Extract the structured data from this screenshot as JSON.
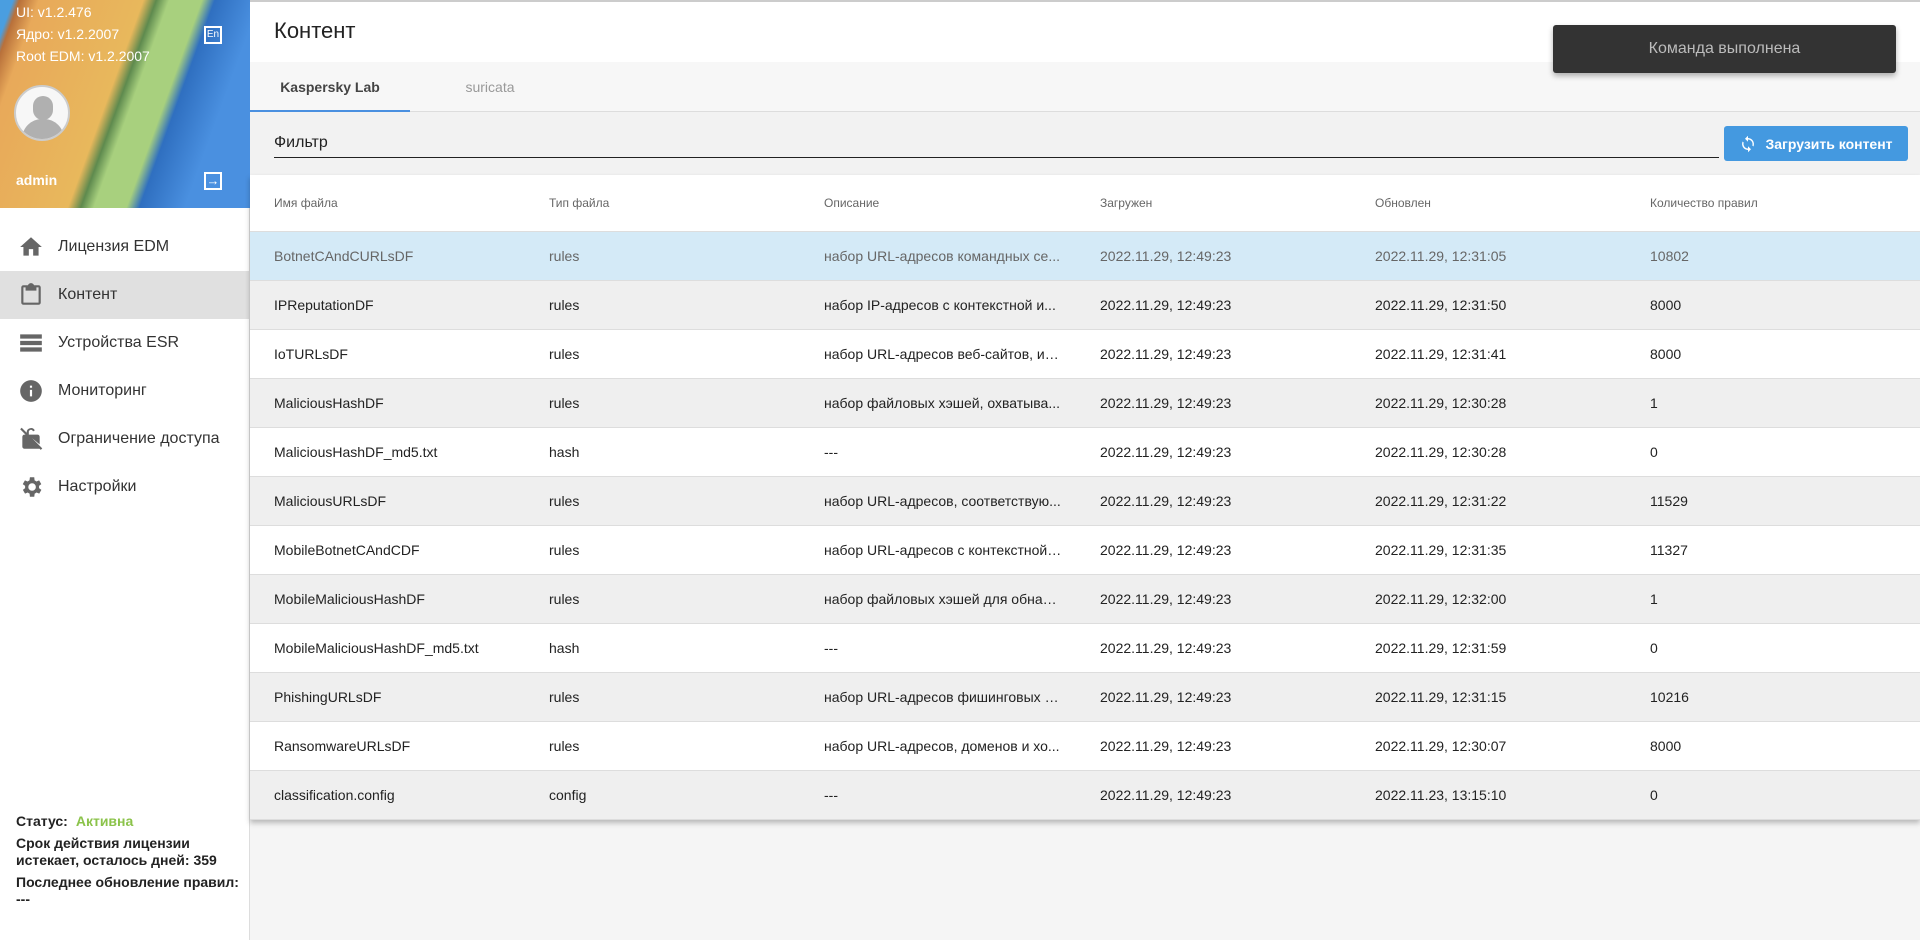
{
  "sidebar": {
    "versions": [
      "UI: v1.2.476",
      "Ядро: v1.2.2007",
      "Root EDM: v1.2.2007"
    ],
    "user": "admin",
    "items": [
      {
        "label": "Лицензия EDM",
        "icon": "home-icon"
      },
      {
        "label": "Контент",
        "icon": "clipboard-icon",
        "active": true
      },
      {
        "label": "Устройства ESR",
        "icon": "server-list-icon"
      },
      {
        "label": "Мониторинг",
        "icon": "info-icon"
      },
      {
        "label": "Ограничение доступа",
        "icon": "lock-off-icon"
      },
      {
        "label": "Настройки",
        "icon": "gear-icon"
      }
    ],
    "status_label": "Статус:",
    "status_value": "Активна",
    "status_color": "#8bc34a",
    "license": "Срок действия лицензии истекает, осталось дней: 359",
    "last_update": "Последнее обновление правил: ---"
  },
  "header": {
    "title": "Контент"
  },
  "tabs": [
    {
      "label": "Kaspersky Lab",
      "active": true
    },
    {
      "label": "suricata"
    }
  ],
  "filter": {
    "value": "Фильтр"
  },
  "load_button": "Загрузить контент",
  "toast": "Команда выполнена",
  "table": {
    "columns": [
      "Имя файла",
      "Тип файла",
      "Описание",
      "Загружен",
      "Обновлен",
      "Количество правил"
    ],
    "rows": [
      [
        "BotnetCAndCURLsDF",
        "rules",
        "набор URL-адресов командных се...",
        "2022.11.29, 12:49:23",
        "2022.11.29, 12:31:05",
        "10802"
      ],
      [
        "IPReputationDF",
        "rules",
        "набор IP-адресов с контекстной и...",
        "2022.11.29, 12:49:23",
        "2022.11.29, 12:31:50",
        "8000"
      ],
      [
        "IoTURLsDF",
        "rules",
        "набор URL-адресов веб-сайтов, ис...",
        "2022.11.29, 12:49:23",
        "2022.11.29, 12:31:41",
        "8000"
      ],
      [
        "MaliciousHashDF",
        "rules",
        "набор файловых хэшей, охватыва...",
        "2022.11.29, 12:49:23",
        "2022.11.29, 12:30:28",
        "1"
      ],
      [
        "MaliciousHashDF_md5.txt",
        "hash",
        "---",
        "2022.11.29, 12:49:23",
        "2022.11.29, 12:30:28",
        "0"
      ],
      [
        "MaliciousURLsDF",
        "rules",
        "набор URL-адресов, соответствую...",
        "2022.11.29, 12:49:23",
        "2022.11.29, 12:31:22",
        "11529"
      ],
      [
        "MobileBotnetCAndCDF",
        "rules",
        "набор URL-адресов с контекстной ...",
        "2022.11.29, 12:49:23",
        "2022.11.29, 12:31:35",
        "11327"
      ],
      [
        "MobileMaliciousHashDF",
        "rules",
        "набор файловых хэшей для обнар...",
        "2022.11.29, 12:49:23",
        "2022.11.29, 12:32:00",
        "1"
      ],
      [
        "MobileMaliciousHashDF_md5.txt",
        "hash",
        "---",
        "2022.11.29, 12:49:23",
        "2022.11.29, 12:31:59",
        "0"
      ],
      [
        "PhishingURLsDF",
        "rules",
        "набор URL-адресов фишинговых с...",
        "2022.11.29, 12:49:23",
        "2022.11.29, 12:31:15",
        "10216"
      ],
      [
        "RansomwareURLsDF",
        "rules",
        "набор URL-адресов, доменов и хо...",
        "2022.11.29, 12:49:23",
        "2022.11.29, 12:30:07",
        "8000"
      ],
      [
        "classification.config",
        "config",
        "---",
        "2022.11.29, 12:49:23",
        "2022.11.23, 13:15:10",
        "0"
      ]
    ],
    "selected_row": 0
  },
  "colors": {
    "accent": "#4499e0",
    "selected_row": "#d4eaf7",
    "toast_bg": "#333333"
  }
}
